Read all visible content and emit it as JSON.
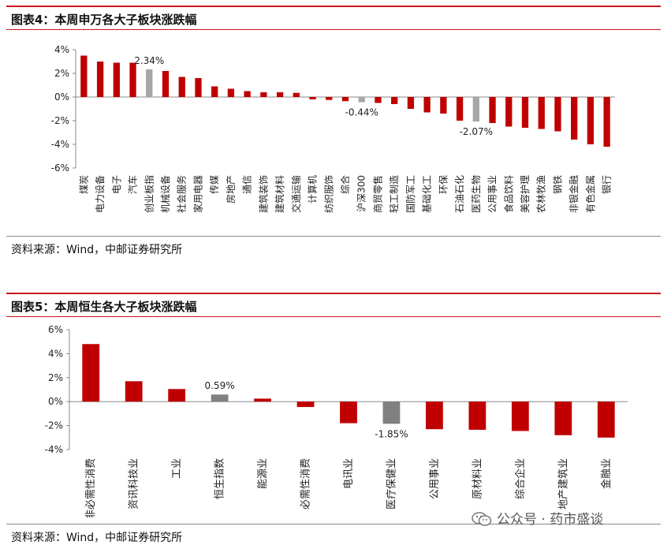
{
  "panels": [
    {
      "title": "图表4：本周申万各大子板块涨跌幅",
      "source": "资料来源：Wind，中邮证券研究所"
    },
    {
      "title": "图表5：本周恒生各大子板块涨跌幅",
      "source": "资料来源：Wind，中邮证券研究所"
    }
  ],
  "watermark": {
    "text": "公众号 · 药市盛谈",
    "icon": "wechat-icon"
  },
  "colors": {
    "bar": "#c00000",
    "highlight": "#a6a6a6",
    "highlight2": "#808080",
    "rule": "#c8161d"
  },
  "chart_data": [
    {
      "type": "bar",
      "title": "本周申万各大子板块涨跌幅",
      "categories": [
        "煤炭",
        "电力设备",
        "电子",
        "汽车",
        "创业板指",
        "机械设备",
        "社会服务",
        "家用电器",
        "传媒",
        "房地产",
        "通信",
        "建筑装饰",
        "建筑材料",
        "交通运输",
        "计算机",
        "纺织服饰",
        "综合",
        "沪深300",
        "商贸零售",
        "轻工制造",
        "国防军工",
        "基础化工",
        "环保",
        "石油石化",
        "医药生物",
        "公用事业",
        "食品饮料",
        "美容护理",
        "农林牧渔",
        "钢铁",
        "非银金融",
        "有色金属",
        "银行"
      ],
      "values": [
        3.5,
        3.0,
        2.9,
        2.9,
        2.34,
        2.2,
        1.7,
        1.6,
        0.9,
        0.7,
        0.5,
        0.4,
        0.4,
        0.35,
        -0.2,
        -0.25,
        -0.35,
        -0.44,
        -0.5,
        -0.6,
        -1.0,
        -1.3,
        -1.4,
        -2.0,
        -2.07,
        -2.2,
        -2.5,
        -2.6,
        -2.7,
        -2.9,
        -3.6,
        -4.0,
        -4.2
      ],
      "highlight": [
        "创业板指",
        "沪深300",
        "医药生物"
      ],
      "data_labels": [
        {
          "category": "创业板指",
          "text": "2.34%"
        },
        {
          "category": "沪深300",
          "text": "-0.44%"
        },
        {
          "category": "医药生物",
          "text": "-2.07%"
        }
      ],
      "yticks": [
        "4%",
        "2%",
        "0%",
        "-2%",
        "-4%",
        "-6%"
      ],
      "ylim": [
        -6,
        4
      ],
      "ytick_values": [
        4,
        2,
        0,
        -2,
        -4,
        -6
      ]
    },
    {
      "type": "bar",
      "title": "本周恒生各大子板块涨跌幅",
      "categories": [
        "非必需性消费",
        "资讯科技业",
        "工业",
        "恒生指数",
        "能源业",
        "必需性消费",
        "电讯业",
        "医疗保健业",
        "公用事业",
        "原材料业",
        "综合企业",
        "地产建筑业",
        "金融业"
      ],
      "values": [
        4.8,
        1.7,
        1.05,
        0.59,
        0.25,
        -0.45,
        -1.8,
        -1.85,
        -2.3,
        -2.35,
        -2.45,
        -2.8,
        -3.0
      ],
      "highlight": [
        "恒生指数",
        "医疗保健业"
      ],
      "data_labels": [
        {
          "category": "恒生指数",
          "text": "0.59%"
        },
        {
          "category": "医疗保健业",
          "text": "-1.85%"
        }
      ],
      "yticks": [
        "6%",
        "4%",
        "2%",
        "0%",
        "-2%",
        "-4%"
      ],
      "ylim": [
        -4,
        6
      ],
      "ytick_values": [
        6,
        4,
        2,
        0,
        -2,
        -4
      ]
    }
  ]
}
